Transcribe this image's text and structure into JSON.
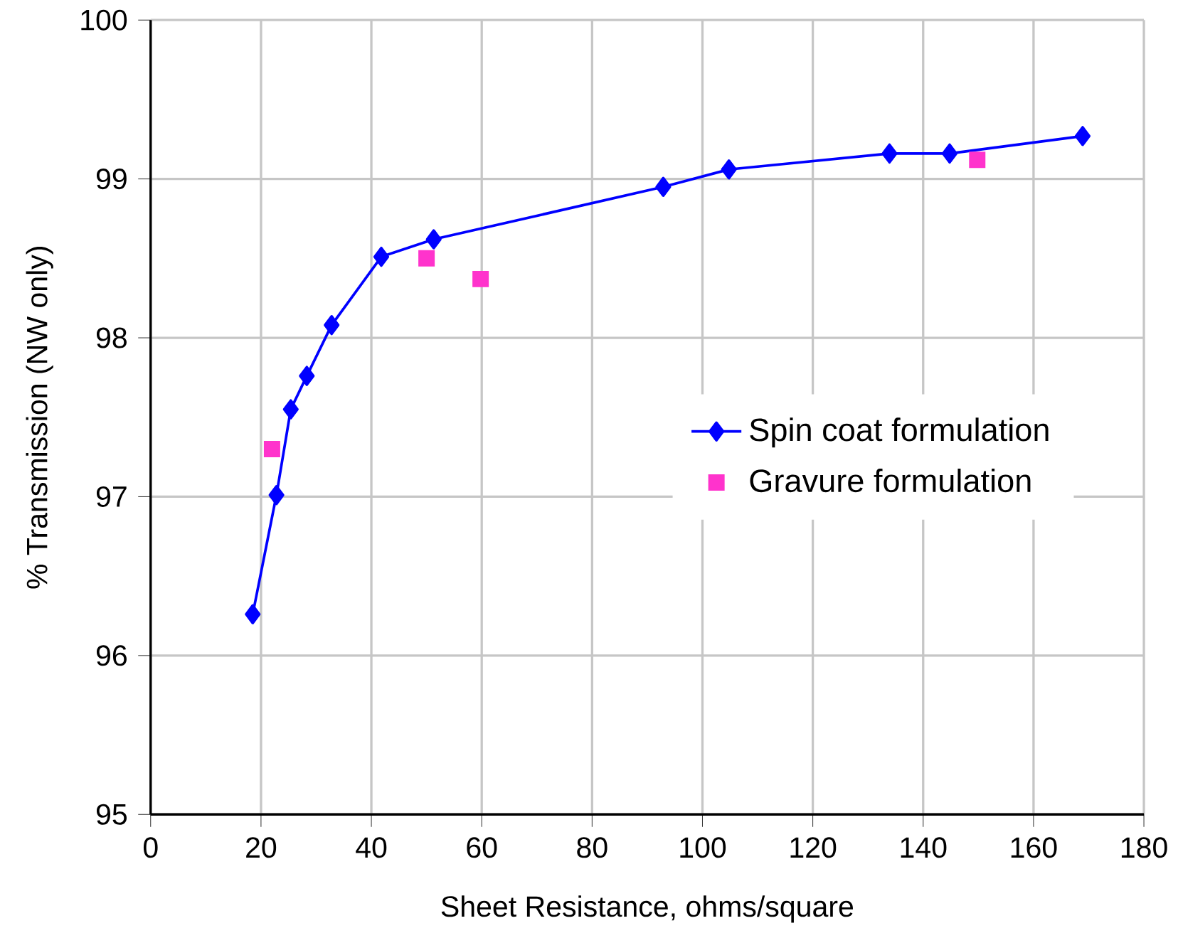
{
  "chart_data": {
    "type": "line",
    "xlabel": "Sheet Resistance, ohms/square",
    "ylabel": "% Transmission (NW only)",
    "xlim": [
      0,
      180
    ],
    "xticks": [
      0,
      20,
      40,
      60,
      80,
      100,
      120,
      140,
      160,
      180
    ],
    "ylim": [
      95,
      100
    ],
    "yticks": [
      95,
      96,
      97,
      98,
      99,
      100
    ],
    "grid": true,
    "legend": "right",
    "series": [
      {
        "name": "Spin coat formulation",
        "color": "#0000ff",
        "marker": "diamond",
        "x": [
          18.5,
          22.8,
          25.4,
          28.3,
          32.8,
          41.8,
          51.3,
          92.9,
          104.8,
          133.9,
          144.8,
          168.9
        ],
        "values": [
          96.26,
          97.01,
          97.55,
          97.76,
          98.08,
          98.51,
          98.62,
          98.95,
          99.06,
          99.16,
          99.16,
          99.27
        ]
      },
      {
        "name": "Gravure formulation",
        "type": "scatter",
        "color": "#ff33cc",
        "marker": "square",
        "x": [
          22.0,
          50.0,
          59.8,
          149.8
        ],
        "values": [
          97.3,
          98.5,
          98.37,
          99.12
        ]
      }
    ]
  }
}
